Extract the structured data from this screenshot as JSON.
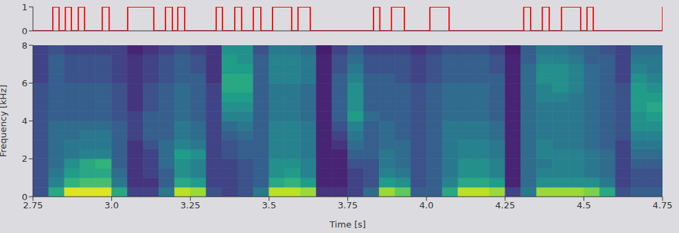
{
  "chart_data": [
    {
      "type": "line",
      "line_style": "step",
      "color": "red",
      "xlim": [
        2.75,
        4.75
      ],
      "ylim": [
        0,
        1
      ],
      "yticks": [
        0,
        1
      ],
      "tick_labels": "y",
      "x": [
        2.75,
        2.813,
        2.833,
        2.853,
        2.872,
        2.894,
        2.914,
        2.97,
        2.992,
        3.051,
        3.134,
        3.171,
        3.193,
        3.21,
        3.232,
        3.332,
        3.352,
        3.391,
        3.413,
        3.45,
        3.474,
        3.511,
        3.572,
        3.592,
        3.631,
        3.832,
        3.852,
        3.889,
        3.93,
        4.011,
        4.072,
        4.309,
        4.331,
        4.368,
        4.39,
        4.429,
        4.49,
        4.51,
        4.53,
        4.75
      ],
      "values": [
        0,
        1,
        0,
        1,
        0,
        1,
        0,
        1,
        0,
        1,
        0,
        1,
        0,
        1,
        0,
        1,
        0,
        1,
        0,
        1,
        0,
        1,
        0,
        1,
        0,
        1,
        0,
        1,
        0,
        1,
        0,
        1,
        0,
        1,
        0,
        1,
        0,
        1,
        0,
        1
      ]
    },
    {
      "type": "heatmap",
      "xlabel": "Time [s]",
      "ylabel": "Frequency [kHz]",
      "xlim": [
        2.75,
        4.75
      ],
      "ylim": [
        0,
        8
      ],
      "xticks": [
        2.75,
        {
          "value": 3,
          "label": "3.0"
        },
        3.25,
        3.5,
        3.75,
        {
          "value": 4,
          "label": "4.0"
        },
        4.25,
        4.5,
        4.75
      ],
      "yticks": [
        0,
        2,
        4,
        6,
        8
      ],
      "clim": [
        0,
        1
      ],
      "x_edges": [
        2.75,
        2.8,
        2.85,
        2.9,
        2.95,
        3.0,
        3.05,
        3.1,
        3.15,
        3.2,
        3.25,
        3.3,
        3.35,
        3.4,
        3.45,
        3.5,
        3.55,
        3.6,
        3.65,
        3.7,
        3.75,
        3.8,
        3.85,
        3.9,
        3.95,
        4.0,
        4.05,
        4.1,
        4.15,
        4.2,
        4.25,
        4.3,
        4.35,
        4.4,
        4.45,
        4.5,
        4.55,
        4.6,
        4.65,
        4.7,
        4.75
      ],
      "y_edges": [
        0,
        0.5,
        1,
        1.5,
        2,
        2.5,
        3,
        3.5,
        4,
        4.5,
        5,
        5.5,
        6,
        6.5,
        7,
        7.5,
        8
      ],
      "cells": [
        [
          0.25,
          0.25,
          0.25,
          0.25,
          0.25,
          0.25,
          0.25,
          0.25,
          0.25,
          0.25,
          0.25,
          0.25,
          0.2,
          0.2,
          0.2,
          0.2
        ],
        [
          0.6,
          0.45,
          0.4,
          0.35,
          0.35,
          0.35,
          0.35,
          0.35,
          0.3,
          0.3,
          0.3,
          0.3,
          0.3,
          0.3,
          0.3,
          0.25
        ],
        [
          0.95,
          0.65,
          0.55,
          0.5,
          0.4,
          0.4,
          0.35,
          0.35,
          0.3,
          0.3,
          0.3,
          0.3,
          0.25,
          0.25,
          0.25,
          0.2
        ],
        [
          0.95,
          0.7,
          0.6,
          0.6,
          0.45,
          0.4,
          0.4,
          0.35,
          0.3,
          0.3,
          0.3,
          0.3,
          0.25,
          0.25,
          0.25,
          0.2
        ],
        [
          0.95,
          0.7,
          0.6,
          0.65,
          0.45,
          0.4,
          0.4,
          0.35,
          0.3,
          0.3,
          0.3,
          0.3,
          0.25,
          0.25,
          0.25,
          0.2
        ],
        [
          0.6,
          0.4,
          0.35,
          0.3,
          0.3,
          0.3,
          0.3,
          0.3,
          0.25,
          0.25,
          0.25,
          0.25,
          0.2,
          0.2,
          0.2,
          0.2
        ],
        [
          0.2,
          0.15,
          0.15,
          0.15,
          0.15,
          0.15,
          0.2,
          0.2,
          0.2,
          0.15,
          0.15,
          0.15,
          0.15,
          0.15,
          0.15,
          0.1
        ],
        [
          0.2,
          0.15,
          0.2,
          0.2,
          0.2,
          0.25,
          0.3,
          0.3,
          0.3,
          0.25,
          0.25,
          0.25,
          0.2,
          0.2,
          0.2,
          0.15
        ],
        [
          0.4,
          0.3,
          0.3,
          0.35,
          0.35,
          0.35,
          0.3,
          0.3,
          0.3,
          0.3,
          0.3,
          0.3,
          0.25,
          0.25,
          0.25,
          0.2
        ],
        [
          0.9,
          0.6,
          0.5,
          0.5,
          0.55,
          0.45,
          0.4,
          0.4,
          0.35,
          0.35,
          0.35,
          0.35,
          0.3,
          0.3,
          0.3,
          0.25
        ],
        [
          0.85,
          0.55,
          0.45,
          0.45,
          0.5,
          0.4,
          0.35,
          0.35,
          0.3,
          0.3,
          0.3,
          0.3,
          0.3,
          0.25,
          0.25,
          0.2
        ],
        [
          0.25,
          0.2,
          0.2,
          0.2,
          0.2,
          0.2,
          0.2,
          0.2,
          0.2,
          0.2,
          0.2,
          0.2,
          0.15,
          0.15,
          0.15,
          0.15
        ],
        [
          0.2,
          0.2,
          0.2,
          0.2,
          0.25,
          0.25,
          0.3,
          0.35,
          0.45,
          0.5,
          0.55,
          0.6,
          0.6,
          0.55,
          0.55,
          0.5
        ],
        [
          0.25,
          0.25,
          0.25,
          0.25,
          0.3,
          0.3,
          0.35,
          0.4,
          0.45,
          0.5,
          0.55,
          0.6,
          0.6,
          0.55,
          0.5,
          0.5
        ],
        [
          0.4,
          0.3,
          0.3,
          0.3,
          0.3,
          0.3,
          0.3,
          0.3,
          0.3,
          0.3,
          0.3,
          0.3,
          0.3,
          0.3,
          0.3,
          0.25
        ],
        [
          0.9,
          0.6,
          0.5,
          0.5,
          0.45,
          0.45,
          0.45,
          0.45,
          0.4,
          0.4,
          0.4,
          0.4,
          0.45,
          0.45,
          0.45,
          0.4
        ],
        [
          0.9,
          0.65,
          0.55,
          0.5,
          0.45,
          0.45,
          0.45,
          0.45,
          0.4,
          0.4,
          0.4,
          0.4,
          0.45,
          0.45,
          0.45,
          0.4
        ],
        [
          0.85,
          0.55,
          0.45,
          0.45,
          0.4,
          0.4,
          0.4,
          0.4,
          0.35,
          0.35,
          0.35,
          0.35,
          0.4,
          0.4,
          0.4,
          0.35
        ],
        [
          0.15,
          0.1,
          0.1,
          0.1,
          0.1,
          0.1,
          0.1,
          0.1,
          0.1,
          0.1,
          0.1,
          0.1,
          0.1,
          0.1,
          0.1,
          0.08
        ],
        [
          0.15,
          0.1,
          0.1,
          0.1,
          0.1,
          0.15,
          0.2,
          0.25,
          0.3,
          0.3,
          0.3,
          0.3,
          0.3,
          0.25,
          0.25,
          0.2
        ],
        [
          0.2,
          0.2,
          0.2,
          0.25,
          0.3,
          0.35,
          0.4,
          0.45,
          0.55,
          0.5,
          0.5,
          0.5,
          0.45,
          0.4,
          0.35,
          0.3
        ],
        [
          0.35,
          0.25,
          0.25,
          0.25,
          0.3,
          0.3,
          0.3,
          0.3,
          0.35,
          0.3,
          0.3,
          0.3,
          0.3,
          0.25,
          0.25,
          0.2
        ],
        [
          0.85,
          0.55,
          0.45,
          0.4,
          0.4,
          0.35,
          0.35,
          0.35,
          0.3,
          0.3,
          0.3,
          0.3,
          0.3,
          0.25,
          0.25,
          0.2
        ],
        [
          0.75,
          0.5,
          0.4,
          0.35,
          0.35,
          0.35,
          0.3,
          0.3,
          0.3,
          0.3,
          0.3,
          0.3,
          0.25,
          0.25,
          0.25,
          0.2
        ],
        [
          0.3,
          0.25,
          0.25,
          0.25,
          0.25,
          0.25,
          0.25,
          0.25,
          0.25,
          0.25,
          0.25,
          0.25,
          0.2,
          0.2,
          0.2,
          0.15
        ],
        [
          0.3,
          0.3,
          0.3,
          0.3,
          0.3,
          0.3,
          0.3,
          0.3,
          0.3,
          0.3,
          0.3,
          0.3,
          0.25,
          0.25,
          0.25,
          0.2
        ],
        [
          0.6,
          0.45,
          0.4,
          0.4,
          0.4,
          0.4,
          0.4,
          0.4,
          0.35,
          0.35,
          0.35,
          0.35,
          0.3,
          0.3,
          0.3,
          0.25
        ],
        [
          0.9,
          0.6,
          0.5,
          0.5,
          0.45,
          0.45,
          0.4,
          0.4,
          0.35,
          0.35,
          0.35,
          0.35,
          0.3,
          0.3,
          0.3,
          0.25
        ],
        [
          0.9,
          0.6,
          0.5,
          0.5,
          0.45,
          0.45,
          0.4,
          0.4,
          0.35,
          0.35,
          0.35,
          0.35,
          0.3,
          0.3,
          0.3,
          0.25
        ],
        [
          0.85,
          0.55,
          0.45,
          0.45,
          0.4,
          0.4,
          0.35,
          0.35,
          0.3,
          0.3,
          0.3,
          0.3,
          0.3,
          0.25,
          0.25,
          0.2
        ],
        [
          0.2,
          0.1,
          0.1,
          0.1,
          0.1,
          0.1,
          0.1,
          0.1,
          0.1,
          0.1,
          0.1,
          0.1,
          0.1,
          0.1,
          0.1,
          0.08
        ],
        [
          0.4,
          0.35,
          0.35,
          0.35,
          0.35,
          0.35,
          0.35,
          0.35,
          0.35,
          0.35,
          0.35,
          0.35,
          0.35,
          0.35,
          0.3,
          0.3
        ],
        [
          0.85,
          0.5,
          0.45,
          0.4,
          0.45,
          0.45,
          0.4,
          0.4,
          0.4,
          0.4,
          0.45,
          0.45,
          0.5,
          0.5,
          0.45,
          0.4
        ],
        [
          0.85,
          0.5,
          0.45,
          0.45,
          0.45,
          0.4,
          0.4,
          0.4,
          0.4,
          0.4,
          0.45,
          0.5,
          0.5,
          0.5,
          0.45,
          0.4
        ],
        [
          0.85,
          0.5,
          0.45,
          0.45,
          0.45,
          0.4,
          0.4,
          0.4,
          0.4,
          0.4,
          0.4,
          0.45,
          0.45,
          0.45,
          0.4,
          0.35
        ],
        [
          0.8,
          0.5,
          0.4,
          0.4,
          0.4,
          0.35,
          0.35,
          0.35,
          0.35,
          0.35,
          0.35,
          0.35,
          0.35,
          0.35,
          0.3,
          0.3
        ],
        [
          0.6,
          0.4,
          0.35,
          0.35,
          0.35,
          0.3,
          0.3,
          0.3,
          0.3,
          0.3,
          0.3,
          0.3,
          0.3,
          0.3,
          0.3,
          0.25
        ],
        [
          0.25,
          0.2,
          0.2,
          0.2,
          0.2,
          0.2,
          0.25,
          0.25,
          0.25,
          0.25,
          0.25,
          0.25,
          0.2,
          0.2,
          0.2,
          0.2
        ],
        [
          0.3,
          0.25,
          0.25,
          0.3,
          0.35,
          0.4,
          0.45,
          0.5,
          0.5,
          0.55,
          0.55,
          0.55,
          0.5,
          0.45,
          0.4,
          0.35
        ],
        [
          0.3,
          0.25,
          0.25,
          0.3,
          0.35,
          0.4,
          0.45,
          0.5,
          0.55,
          0.6,
          0.55,
          0.5,
          0.45,
          0.4,
          0.4,
          0.35
        ]
      ]
    }
  ]
}
